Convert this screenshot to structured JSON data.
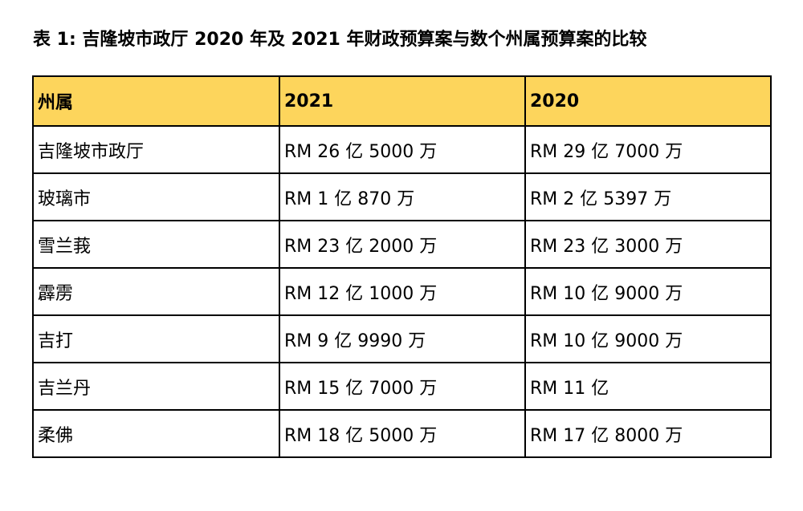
{
  "caption": "表 1: 吉隆坡市政厅 2020 年及 2021 年财政预算案与数个州属预算案的比较",
  "colors": {
    "header_background": "#fdd55c",
    "border": "#000000",
    "text": "#000000"
  },
  "table": {
    "headers": [
      "州属",
      "2021",
      "2020"
    ],
    "rows": [
      [
        "吉隆坡市政厅",
        "RM 26 亿 5000 万",
        "RM 29 亿 7000 万"
      ],
      [
        "玻璃市",
        "RM 1 亿 870 万",
        "RM 2 亿 5397 万"
      ],
      [
        "雪兰莪",
        "RM 23 亿 2000 万",
        "RM 23 亿 3000 万"
      ],
      [
        "霹雳",
        "RM 12 亿 1000 万",
        "RM 10 亿 9000 万"
      ],
      [
        "吉打",
        "RM 9 亿 9990 万",
        "RM 10 亿 9000 万"
      ],
      [
        "吉兰丹",
        "RM 15 亿 7000 万",
        "RM 11 亿"
      ],
      [
        "柔佛",
        "RM 18 亿 5000 万",
        "RM 17 亿 8000 万"
      ]
    ]
  }
}
